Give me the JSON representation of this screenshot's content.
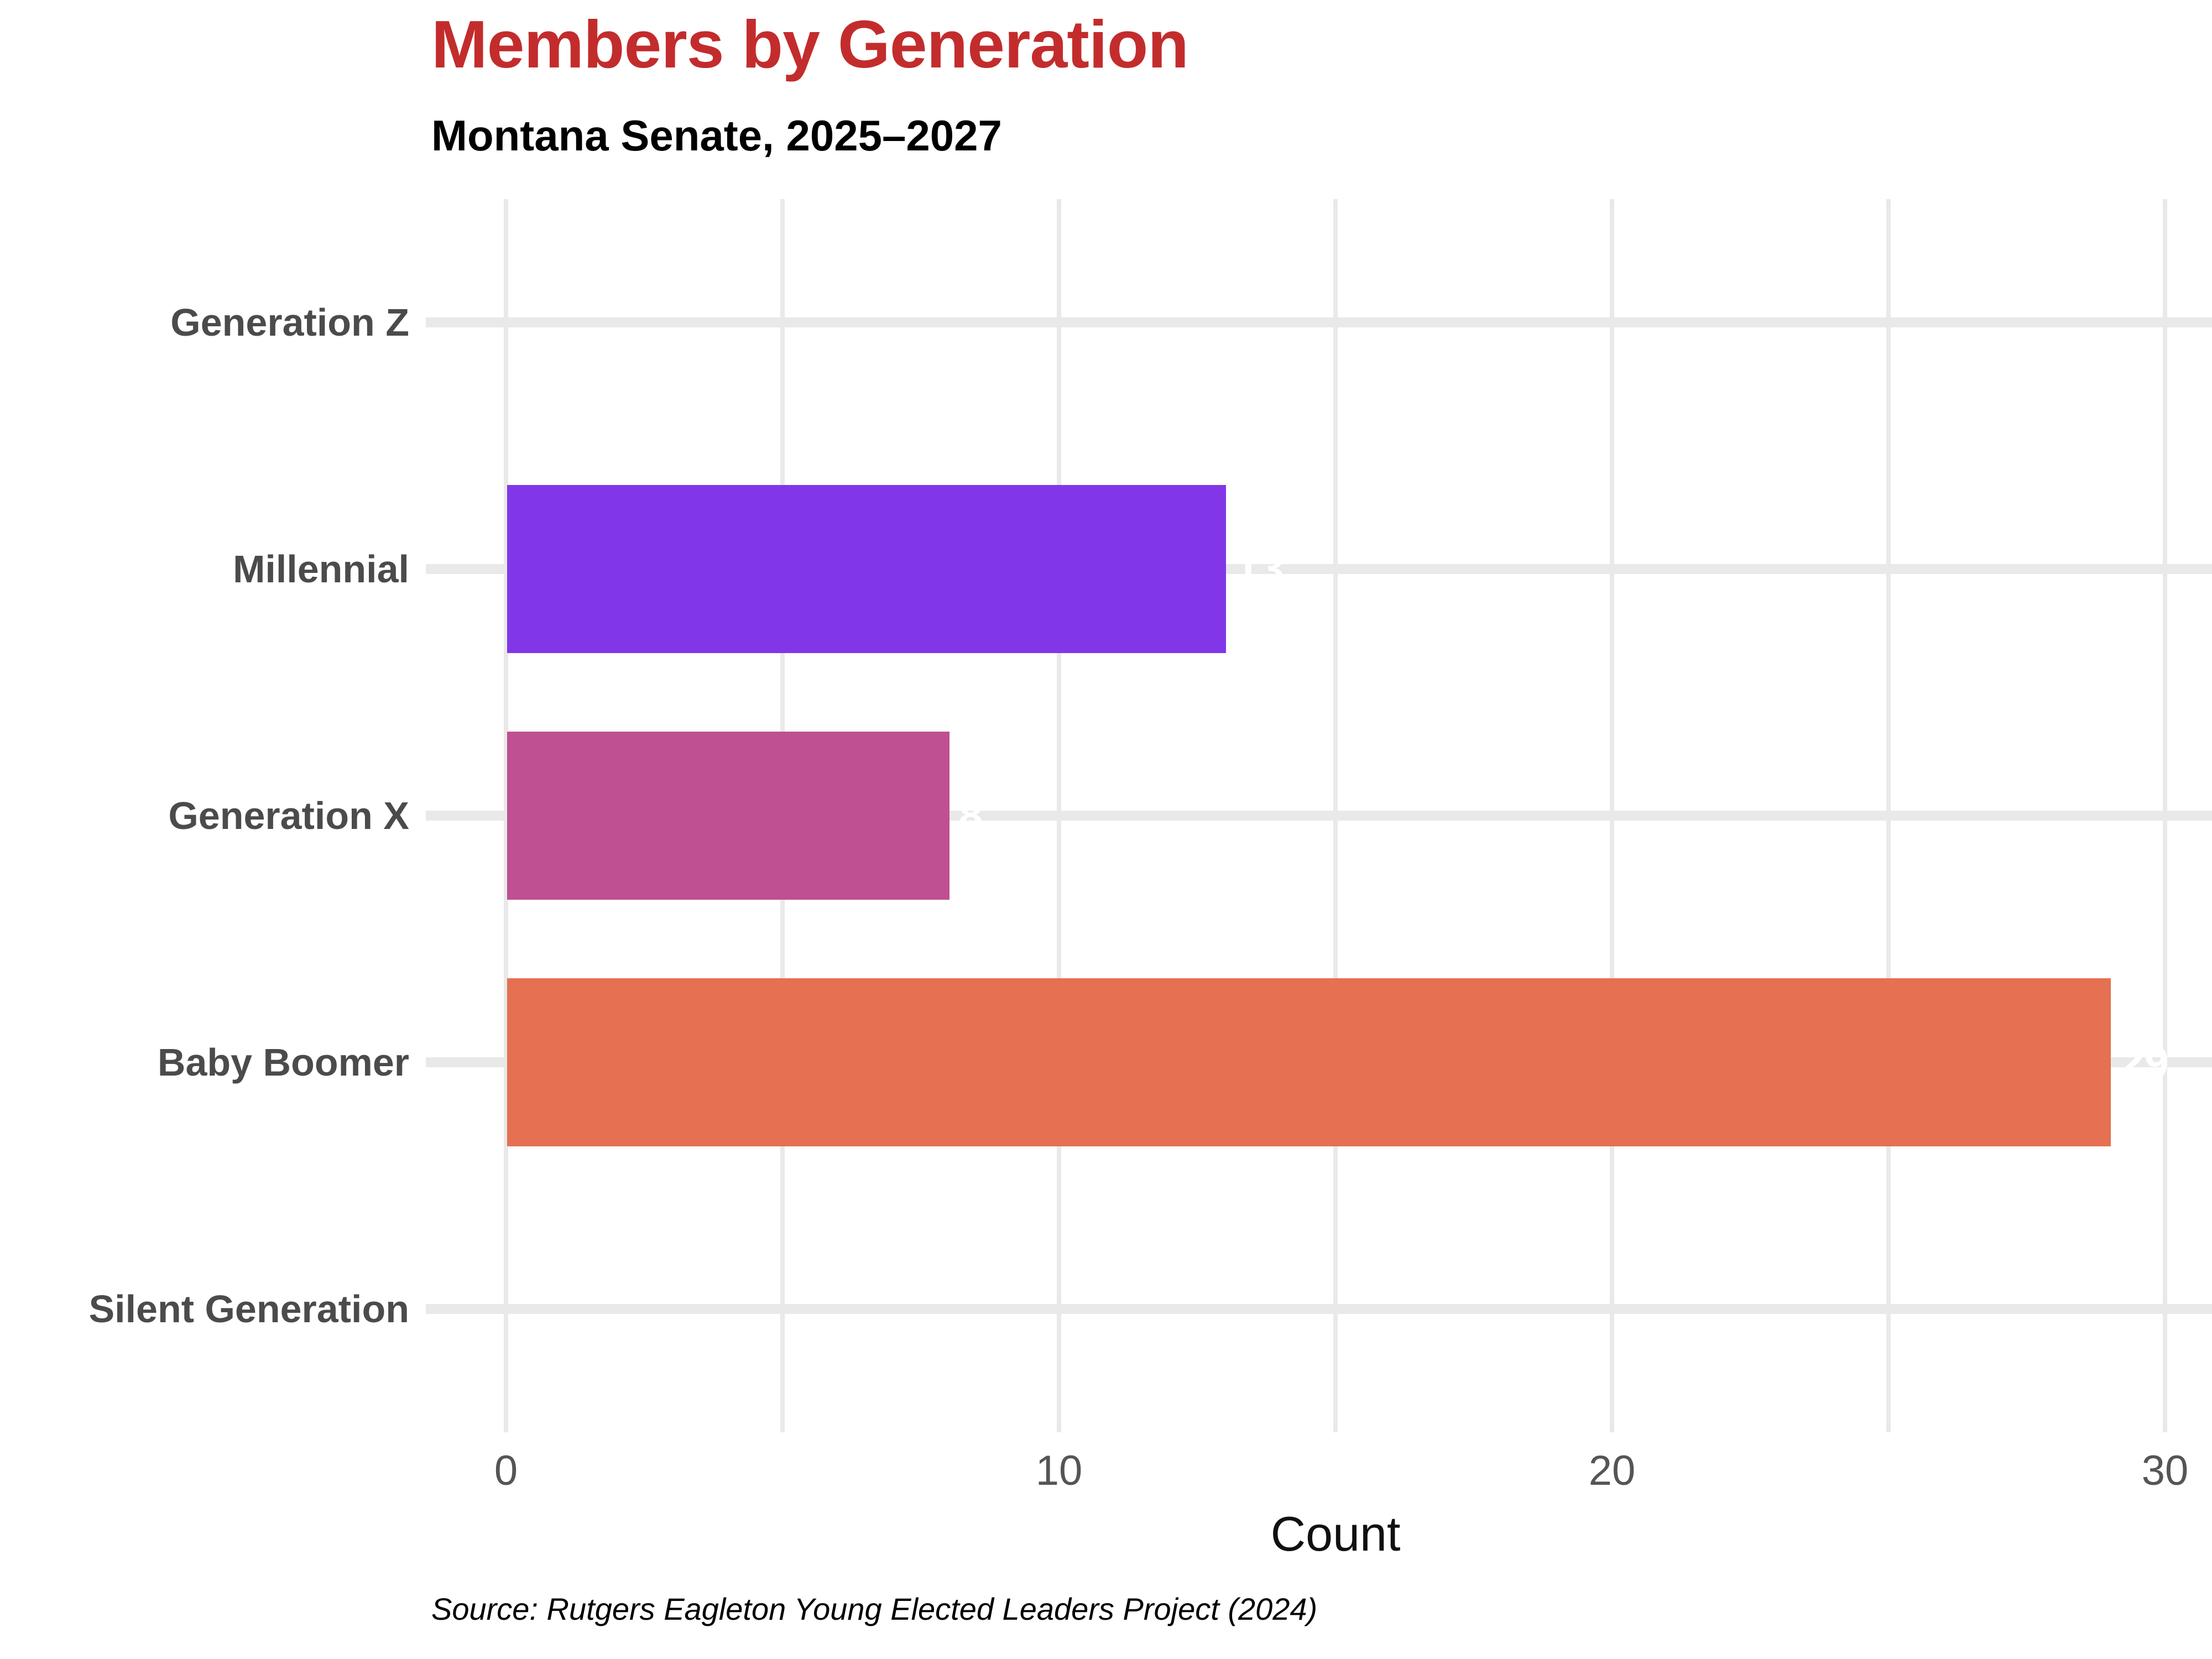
{
  "header": {
    "title": "Members by Generation",
    "subtitle": "Montana Senate, 2025–2027"
  },
  "chart_data": {
    "type": "bar",
    "orientation": "horizontal",
    "title": "Members by Generation",
    "subtitle": "Montana Senate, 2025–2027",
    "categories": [
      "Generation Z",
      "Millennial",
      "Generation X",
      "Baby Boomer",
      "Silent Generation"
    ],
    "values": [
      0,
      13,
      8,
      29,
      0
    ],
    "bar_colors": [
      null,
      "#8137E8",
      "#BF5092",
      "#E57052",
      null
    ],
    "bar_end_labels": [
      "",
      "13",
      "8",
      "29",
      ""
    ],
    "bar_end_label_color": "#FFFFFF",
    "xlabel": "Count",
    "ylabel": "",
    "xlim": [
      0,
      30.6
    ],
    "x_ticks": [
      0,
      10,
      20,
      30
    ],
    "x_gridlines": [
      0,
      5,
      10,
      15,
      20,
      25,
      30
    ],
    "grid": "on",
    "legend": "none"
  },
  "footer": {
    "source": "Source: Rutgers Eagleton Young Elected Leaders Project (2024)"
  },
  "colors": {
    "title": "#C32C2C",
    "subtitle": "#000000",
    "category_label": "#4B4B4B",
    "tick_label": "#555555",
    "axis_title": "#111111",
    "bar_label_knockout": "#FFFFFF",
    "gridline": "#E9E9E9",
    "background": "#FFFFFF"
  }
}
